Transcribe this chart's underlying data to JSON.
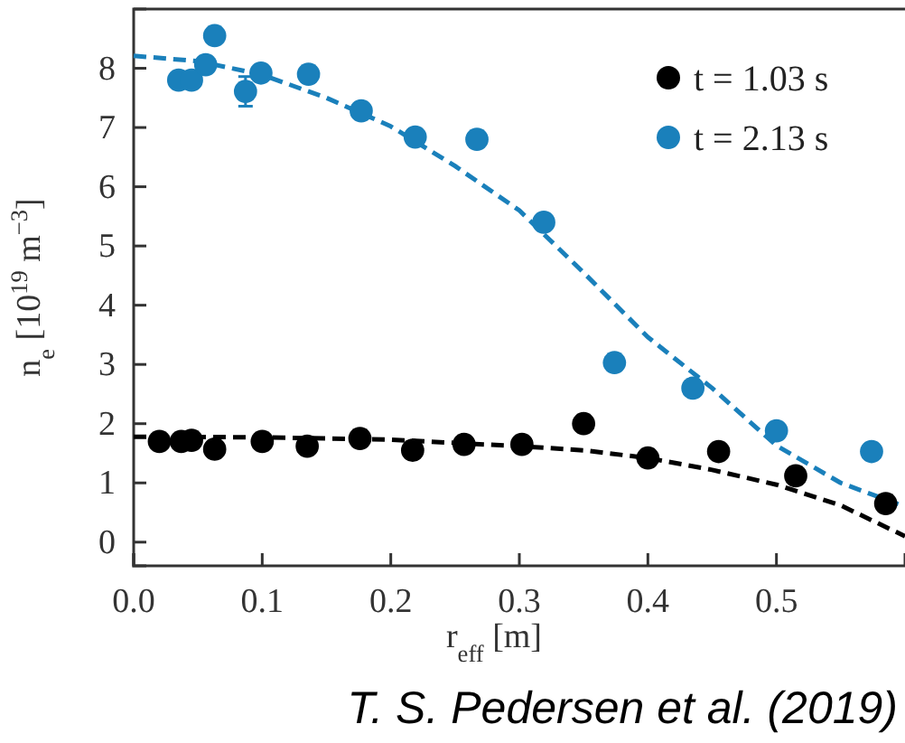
{
  "chart_data": {
    "type": "scatter",
    "xlabel": "r$_{eff}$ [m]",
    "ylabel": "n$_{e}$ [10$^{19}$ m$^{−3}$]",
    "xlim": [
      0,
      0.6
    ],
    "xticks": [
      {
        "value": 0,
        "label": "0.0"
      },
      0.1,
      0.2,
      0.3,
      0.4,
      0.5
    ],
    "ylim": [
      -0.4,
      9.0
    ],
    "yticks": [
      0,
      1,
      2,
      3,
      4,
      5,
      6,
      7,
      8
    ],
    "grid": false,
    "legend": "top right",
    "annotations": [
      "T. S. Pedersen et al. (2019)"
    ],
    "series": [
      {
        "name": "t = 1.03 s",
        "marker": "circle",
        "color": "#000000",
        "x": [
          0.02,
          0.037,
          0.045,
          0.063,
          0.1,
          0.135,
          0.176,
          0.217,
          0.257,
          0.302,
          0.35,
          0.4,
          0.455,
          0.515,
          0.585
        ],
        "values": [
          1.7,
          1.7,
          1.72,
          1.57,
          1.7,
          1.62,
          1.75,
          1.55,
          1.65,
          1.65,
          2.0,
          1.42,
          1.53,
          1.12,
          0.65
        ]
      },
      {
        "name": "t = 2.13 s",
        "marker": "circle",
        "color": "#1a80bb",
        "x": [
          0.035,
          0.045,
          0.056,
          0.063,
          0.087,
          0.099,
          0.136,
          0.177,
          0.219,
          0.267,
          0.319,
          0.374,
          0.435,
          0.5,
          0.574
        ],
        "values": [
          7.8,
          7.8,
          8.06,
          8.55,
          7.61,
          7.92,
          7.9,
          7.28,
          6.84,
          6.8,
          5.4,
          3.03,
          2.6,
          1.88,
          1.53
        ],
        "errors": [
          null,
          null,
          null,
          null,
          0.25,
          null,
          null,
          null,
          null,
          null,
          null,
          null,
          null,
          null,
          null
        ]
      },
      {
        "type": "line",
        "line_style": "dashed",
        "marker": "none",
        "color": "#000000",
        "x": [
          0,
          0.1,
          0.2,
          0.3,
          0.35,
          0.4,
          0.45,
          0.5,
          0.55,
          0.6
        ],
        "values": [
          1.78,
          1.77,
          1.73,
          1.62,
          1.55,
          1.42,
          1.22,
          0.97,
          0.62,
          0.1
        ]
      },
      {
        "type": "line",
        "line_style": "dashed",
        "marker": "none",
        "color": "#1a80bb",
        "x": [
          0,
          0.05,
          0.1,
          0.15,
          0.2,
          0.25,
          0.3,
          0.35,
          0.4,
          0.45,
          0.5,
          0.55,
          0.6
        ],
        "values": [
          8.21,
          8.12,
          7.89,
          7.5,
          7.02,
          6.35,
          5.6,
          4.55,
          3.46,
          2.6,
          1.63,
          1.0,
          0.6
        ]
      }
    ]
  }
}
